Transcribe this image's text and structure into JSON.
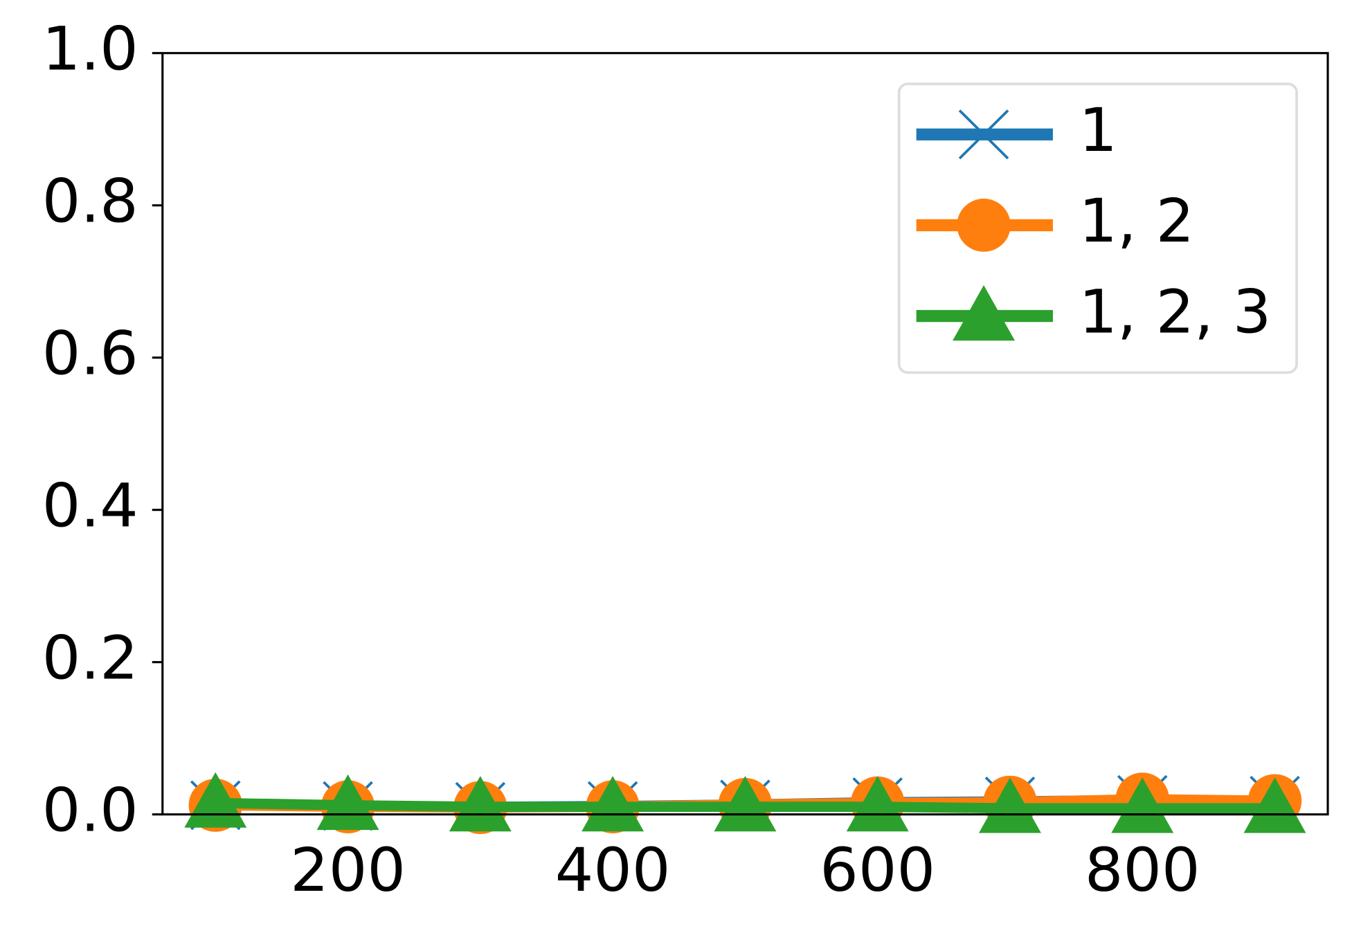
{
  "chart_data": {
    "type": "line",
    "x": [
      100,
      200,
      300,
      400,
      500,
      600,
      700,
      800,
      900
    ],
    "series": [
      {
        "name": "1",
        "color": "#1f77b4",
        "marker": "x",
        "values": [
          0.012,
          0.011,
          0.01,
          0.011,
          0.013,
          0.016,
          0.017,
          0.019,
          0.018
        ]
      },
      {
        "name": "1, 2",
        "color": "#ff7f0e",
        "marker": "o",
        "values": [
          0.012,
          0.01,
          0.009,
          0.01,
          0.013,
          0.015,
          0.016,
          0.02,
          0.018
        ]
      },
      {
        "name": "1, 2, 3",
        "color": "#2ca02c",
        "marker": "^",
        "values": [
          0.015,
          0.012,
          0.01,
          0.01,
          0.01,
          0.01,
          0.008,
          0.008,
          0.008
        ]
      }
    ],
    "xlim": [
      60,
      940
    ],
    "xticks": [
      200,
      400,
      600,
      800
    ],
    "ylim": [
      0,
      1
    ],
    "yticks": [
      {
        "value": 0,
        "label": "0.0"
      },
      0.2,
      0.4,
      0.6,
      0.8,
      {
        "value": 1,
        "label": "1.0"
      }
    ],
    "grid": false,
    "legend": "upper right"
  }
}
